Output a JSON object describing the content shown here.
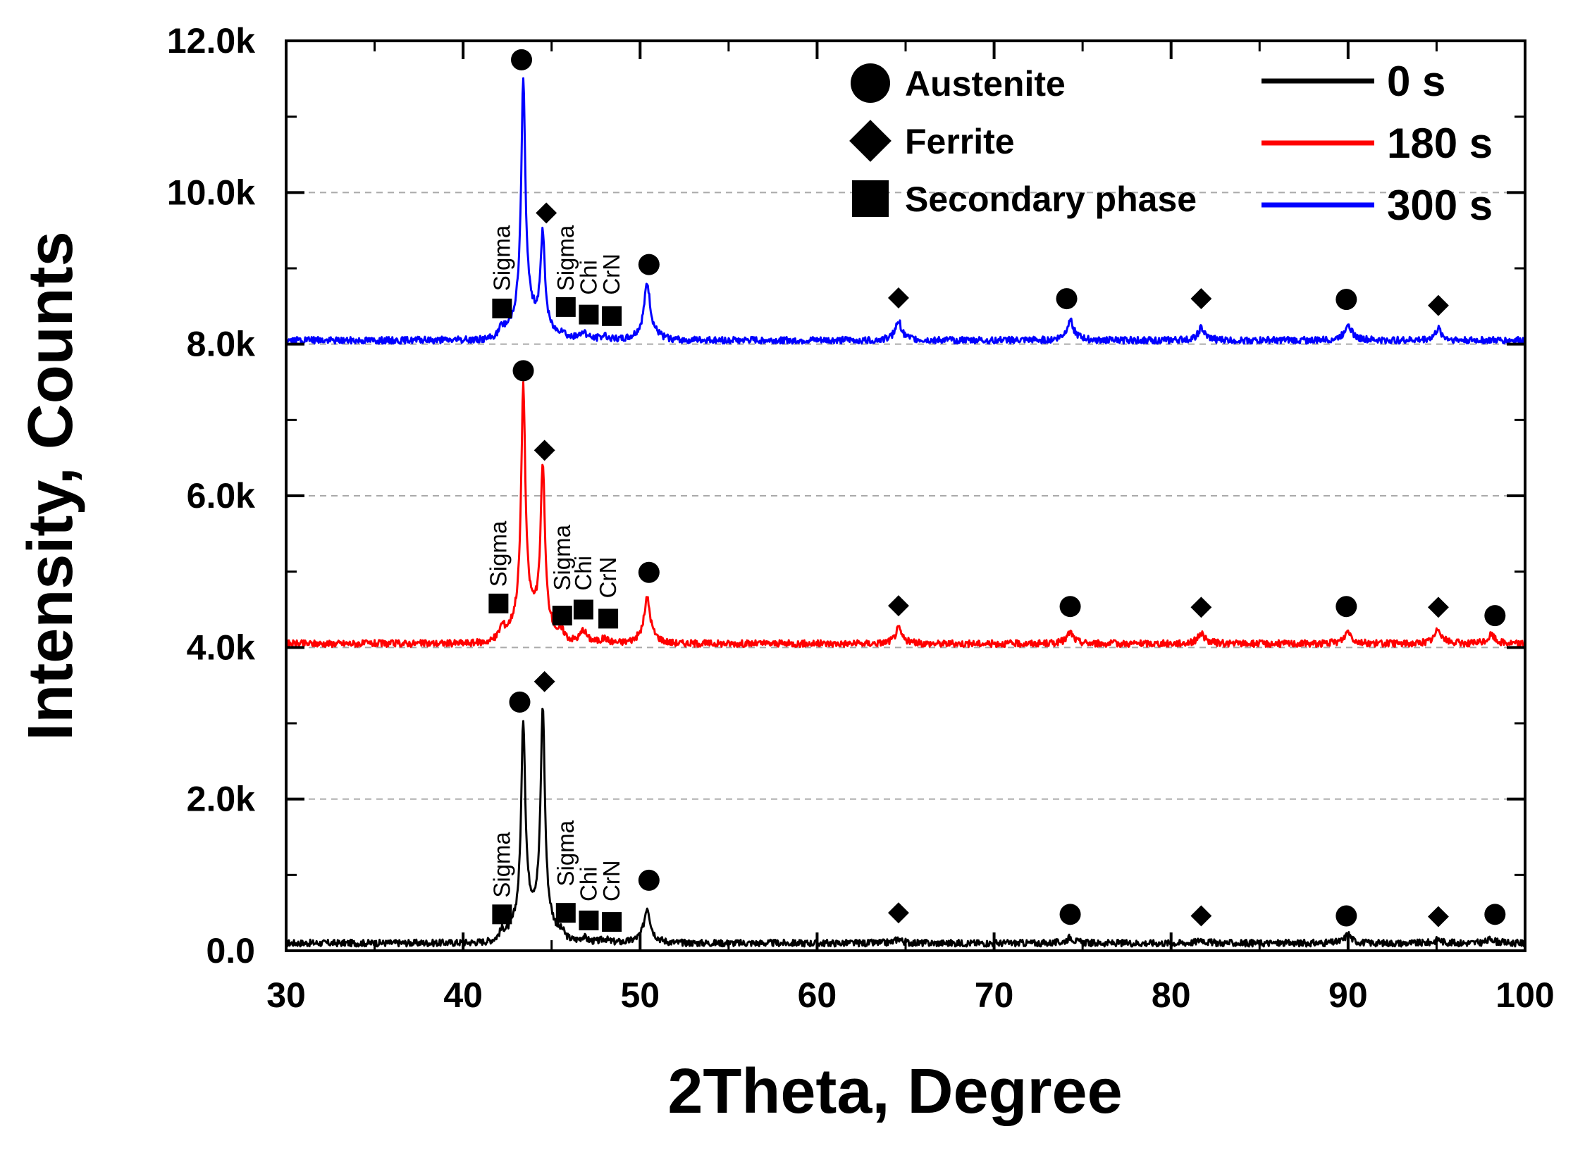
{
  "chart_data": {
    "type": "line",
    "title": "",
    "xlabel": "2Theta, Degree",
    "ylabel": "Intensity, Counts",
    "xlim": [
      30,
      100
    ],
    "ylim": [
      0,
      12000
    ],
    "xticks": [
      30,
      40,
      50,
      60,
      70,
      80,
      90,
      100
    ],
    "xtick_labels": [
      "30",
      "40",
      "50",
      "60",
      "70",
      "80",
      "90",
      "100"
    ],
    "yticks": [
      0,
      2000,
      4000,
      6000,
      8000,
      10000,
      12000
    ],
    "ytick_labels": [
      "0.0",
      "2.0k",
      "4.0k",
      "6.0k",
      "8.0k",
      "10.0k",
      "12.0k"
    ],
    "grid": "horizontal dashed at major y ticks",
    "series": [
      {
        "name": "0 s",
        "color": "#000000",
        "baseline": 100,
        "peaks": [
          {
            "x": 42.2,
            "height": 120
          },
          {
            "x": 43.4,
            "height": 2850
          },
          {
            "x": 44.5,
            "height": 3050
          },
          {
            "x": 45.6,
            "height": 80
          },
          {
            "x": 46.8,
            "height": 70
          },
          {
            "x": 48.0,
            "height": 50
          },
          {
            "x": 50.4,
            "height": 470
          },
          {
            "x": 64.6,
            "height": 60
          },
          {
            "x": 74.3,
            "height": 80
          },
          {
            "x": 81.7,
            "height": 50
          },
          {
            "x": 90.0,
            "height": 120
          },
          {
            "x": 95.1,
            "height": 50
          },
          {
            "x": 98.1,
            "height": 60
          }
        ],
        "markers": [
          {
            "x": 43.2,
            "y": 3280,
            "shape": "circle"
          },
          {
            "x": 44.6,
            "y": 3550,
            "shape": "diamond"
          },
          {
            "x": 50.5,
            "y": 930,
            "shape": "circle"
          },
          {
            "x": 64.6,
            "y": 500,
            "shape": "diamond"
          },
          {
            "x": 74.3,
            "y": 480,
            "shape": "circle"
          },
          {
            "x": 81.7,
            "y": 460,
            "shape": "diamond"
          },
          {
            "x": 89.9,
            "y": 460,
            "shape": "circle"
          },
          {
            "x": 95.1,
            "y": 450,
            "shape": "diamond"
          },
          {
            "x": 98.3,
            "y": 480,
            "shape": "circle"
          },
          {
            "x": 42.2,
            "y": 480,
            "shape": "square"
          },
          {
            "x": 45.8,
            "y": 500,
            "shape": "square"
          },
          {
            "x": 47.1,
            "y": 400,
            "shape": "square"
          },
          {
            "x": 48.4,
            "y": 380,
            "shape": "square"
          }
        ],
        "phase_labels": [
          {
            "text": "Sigma",
            "x": 42.2,
            "y": 700
          },
          {
            "text": "Sigma",
            "x": 45.8,
            "y": 850
          },
          {
            "text": "Chi",
            "x": 47.1,
            "y": 650
          },
          {
            "text": "CrN",
            "x": 48.4,
            "y": 650
          }
        ]
      },
      {
        "name": "180 s",
        "color": "#ff0000",
        "baseline": 4050,
        "peaks": [
          {
            "x": 42.2,
            "height": 180
          },
          {
            "x": 43.4,
            "height": 3350
          },
          {
            "x": 44.5,
            "height": 2300
          },
          {
            "x": 45.6,
            "height": 100
          },
          {
            "x": 46.8,
            "height": 170
          },
          {
            "x": 48.0,
            "height": 60
          },
          {
            "x": 50.4,
            "height": 600
          },
          {
            "x": 64.6,
            "height": 200
          },
          {
            "x": 74.3,
            "height": 150
          },
          {
            "x": 81.7,
            "height": 140
          },
          {
            "x": 90.0,
            "height": 170
          },
          {
            "x": 95.1,
            "height": 200
          },
          {
            "x": 98.1,
            "height": 120
          }
        ],
        "markers": [
          {
            "x": 43.4,
            "y": 7650,
            "shape": "circle"
          },
          {
            "x": 44.6,
            "y": 6600,
            "shape": "diamond"
          },
          {
            "x": 50.5,
            "y": 4990,
            "shape": "circle"
          },
          {
            "x": 64.6,
            "y": 4550,
            "shape": "diamond"
          },
          {
            "x": 74.3,
            "y": 4540,
            "shape": "circle"
          },
          {
            "x": 81.7,
            "y": 4530,
            "shape": "diamond"
          },
          {
            "x": 89.9,
            "y": 4540,
            "shape": "circle"
          },
          {
            "x": 95.1,
            "y": 4530,
            "shape": "diamond"
          },
          {
            "x": 98.3,
            "y": 4420,
            "shape": "circle"
          },
          {
            "x": 42.0,
            "y": 4580,
            "shape": "square"
          },
          {
            "x": 45.6,
            "y": 4420,
            "shape": "square"
          },
          {
            "x": 46.8,
            "y": 4500,
            "shape": "square"
          },
          {
            "x": 48.2,
            "y": 4380,
            "shape": "square"
          }
        ],
        "phase_labels": [
          {
            "text": "Sigma",
            "x": 42.0,
            "y": 4800
          },
          {
            "text": "Sigma",
            "x": 45.6,
            "y": 4750
          },
          {
            "text": "Chi",
            "x": 46.8,
            "y": 4750
          },
          {
            "text": "CrN",
            "x": 48.2,
            "y": 4650
          }
        ]
      },
      {
        "name": "300 s",
        "color": "#0000ff",
        "baseline": 8050,
        "peaks": [
          {
            "x": 42.2,
            "height": 130
          },
          {
            "x": 43.4,
            "height": 3400
          },
          {
            "x": 44.5,
            "height": 1350
          },
          {
            "x": 45.6,
            "height": 90
          },
          {
            "x": 46.8,
            "height": 110
          },
          {
            "x": 48.0,
            "height": 60
          },
          {
            "x": 50.4,
            "height": 750
          },
          {
            "x": 64.6,
            "height": 250
          },
          {
            "x": 74.3,
            "height": 280
          },
          {
            "x": 81.7,
            "height": 160
          },
          {
            "x": 90.0,
            "height": 230
          },
          {
            "x": 95.1,
            "height": 150
          }
        ],
        "markers": [
          {
            "x": 43.3,
            "y": 11750,
            "shape": "circle"
          },
          {
            "x": 44.7,
            "y": 9730,
            "shape": "diamond"
          },
          {
            "x": 50.5,
            "y": 9050,
            "shape": "circle"
          },
          {
            "x": 64.6,
            "y": 8610,
            "shape": "diamond"
          },
          {
            "x": 74.1,
            "y": 8600,
            "shape": "circle"
          },
          {
            "x": 81.7,
            "y": 8600,
            "shape": "diamond"
          },
          {
            "x": 89.9,
            "y": 8590,
            "shape": "circle"
          },
          {
            "x": 95.1,
            "y": 8510,
            "shape": "diamond"
          },
          {
            "x": 42.2,
            "y": 8470,
            "shape": "square"
          },
          {
            "x": 45.8,
            "y": 8490,
            "shape": "square"
          },
          {
            "x": 47.1,
            "y": 8390,
            "shape": "square"
          },
          {
            "x": 48.4,
            "y": 8370,
            "shape": "square"
          }
        ],
        "phase_labels": [
          {
            "text": "Sigma",
            "x": 42.2,
            "y": 8700
          },
          {
            "text": "Sigma",
            "x": 45.8,
            "y": 8700
          },
          {
            "text": "Chi",
            "x": 47.1,
            "y": 8650
          },
          {
            "text": "CrN",
            "x": 48.4,
            "y": 8650
          }
        ]
      }
    ],
    "phase_legend": [
      {
        "shape": "circle",
        "label": "Austenite"
      },
      {
        "shape": "diamond",
        "label": "Ferrite"
      },
      {
        "shape": "square",
        "label": "Secondary phase"
      }
    ],
    "series_legend_placement": "top-right",
    "phase_legend_placement": "top-center-right"
  }
}
